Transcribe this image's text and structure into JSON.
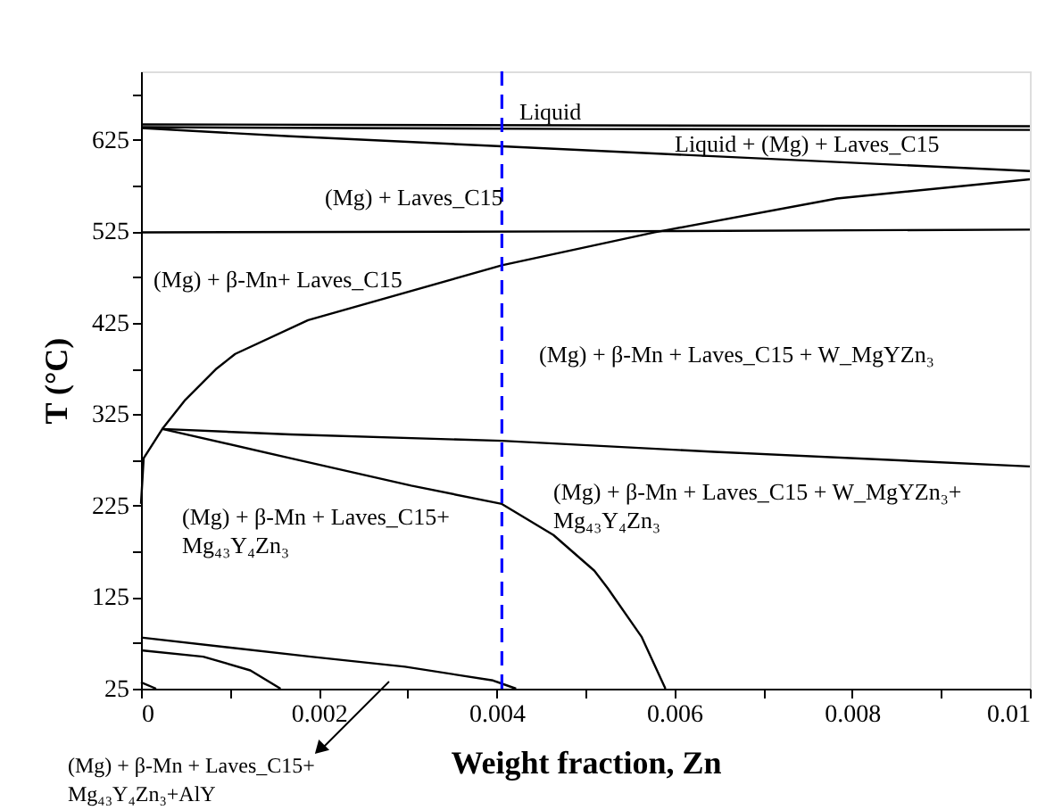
{
  "chart_data": {
    "type": "line",
    "xlabel": "Weight fraction, Zn",
    "ylabel": "T (°C)",
    "xlim": [
      0,
      0.01
    ],
    "ylim": [
      25,
      700
    ],
    "xticks": [
      0,
      {
        "value": 0.001,
        "label": null
      },
      0.002,
      {
        "value": 0.003,
        "label": null
      },
      0.004,
      {
        "value": 0.005,
        "label": null
      },
      0.006,
      {
        "value": 0.007,
        "label": null
      },
      0.008,
      {
        "value": 0.009,
        "label": null
      },
      0.01
    ],
    "yticks": [
      25,
      {
        "value": 75,
        "label": null
      },
      125,
      {
        "value": 175,
        "label": null
      },
      225,
      {
        "value": 275,
        "label": null
      },
      325,
      {
        "value": 375,
        "label": null
      },
      425,
      {
        "value": 475,
        "label": null
      },
      525,
      {
        "value": 575,
        "label": null
      },
      625,
      {
        "value": 675,
        "label": null
      }
    ],
    "grid": false,
    "legend": false,
    "marker": "none",
    "line_style": "solid",
    "series": [
      {
        "color": "#000000",
        "x": [
          0,
          0.005,
          0.01
        ],
        "values": [
          642,
          641,
          640
        ]
      },
      {
        "color": "#000000",
        "x": [
          0,
          0.005,
          0.01
        ],
        "values": [
          639,
          637,
          636
        ]
      },
      {
        "color": "#000000",
        "x": [
          0,
          0.00168,
          0.00406,
          0.01
        ],
        "values": [
          638,
          629,
          618,
          591
        ]
      },
      {
        "color": "#000000",
        "x": [
          0,
          0.005,
          0.01
        ],
        "values": [
          524,
          525,
          527
        ]
      },
      {
        "color": "#000000",
        "x": [
          0,
          3e-05,
          0.00024,
          0.0005,
          0.00085,
          0.00106,
          0.00188,
          0.00406,
          0.00578,
          0.00783,
          0.01
        ],
        "values": [
          227,
          277,
          309,
          341,
          375,
          391,
          428,
          488,
          524,
          561,
          582
        ]
      },
      {
        "color": "#000000",
        "x": [
          0.00024,
          0.00168,
          0.00406,
          0.00645,
          0.01
        ],
        "values": [
          309,
          303,
          296,
          284,
          268
        ]
      },
      {
        "color": "#000000",
        "x": [
          0.00024,
          0.00168,
          0.00304,
          0.00406,
          0.00464,
          0.0051,
          0.00525,
          0.00563,
          0.0059
        ],
        "values": [
          309,
          277,
          247,
          227,
          193,
          154,
          135,
          82,
          25
        ]
      },
      {
        "color": "#000000",
        "x": [
          0,
          0.00191,
          0.00297,
          0.00396,
          0.00422
        ],
        "values": [
          81,
          60,
          49,
          34,
          25
        ]
      },
      {
        "color": "#000000",
        "x": [
          0,
          0.0007,
          0.00123,
          0.00157
        ],
        "values": [
          67,
          60,
          45,
          25
        ]
      },
      {
        "color": "#000000",
        "x": [
          0,
          0.00017
        ],
        "values": [
          32,
          25
        ]
      }
    ],
    "ref_lines": [
      {
        "axis": "x",
        "value": 0.00406,
        "color": "#0000ff",
        "line_style": "dashed"
      }
    ],
    "annotations": [
      "Liquid",
      "Liquid + (Mg) + Laves_C15",
      "(Mg) + Laves_C15",
      "(Mg) + β-Mn+ Laves_C15",
      "(Mg) + β-Mn + Laves_C15 + W_MgYZn₃",
      "(Mg) + β-Mn + Laves_C15 + W_MgYZn₃+\nMg₄₃Y₄Zn₃",
      "(Mg) + β-Mn + Laves_C15+\nMg₄₃Y₄Zn₃",
      "(Mg) + β-Mn + Laves_C15+\nMg₄₃Y₄Zn₃+AlY"
    ]
  }
}
